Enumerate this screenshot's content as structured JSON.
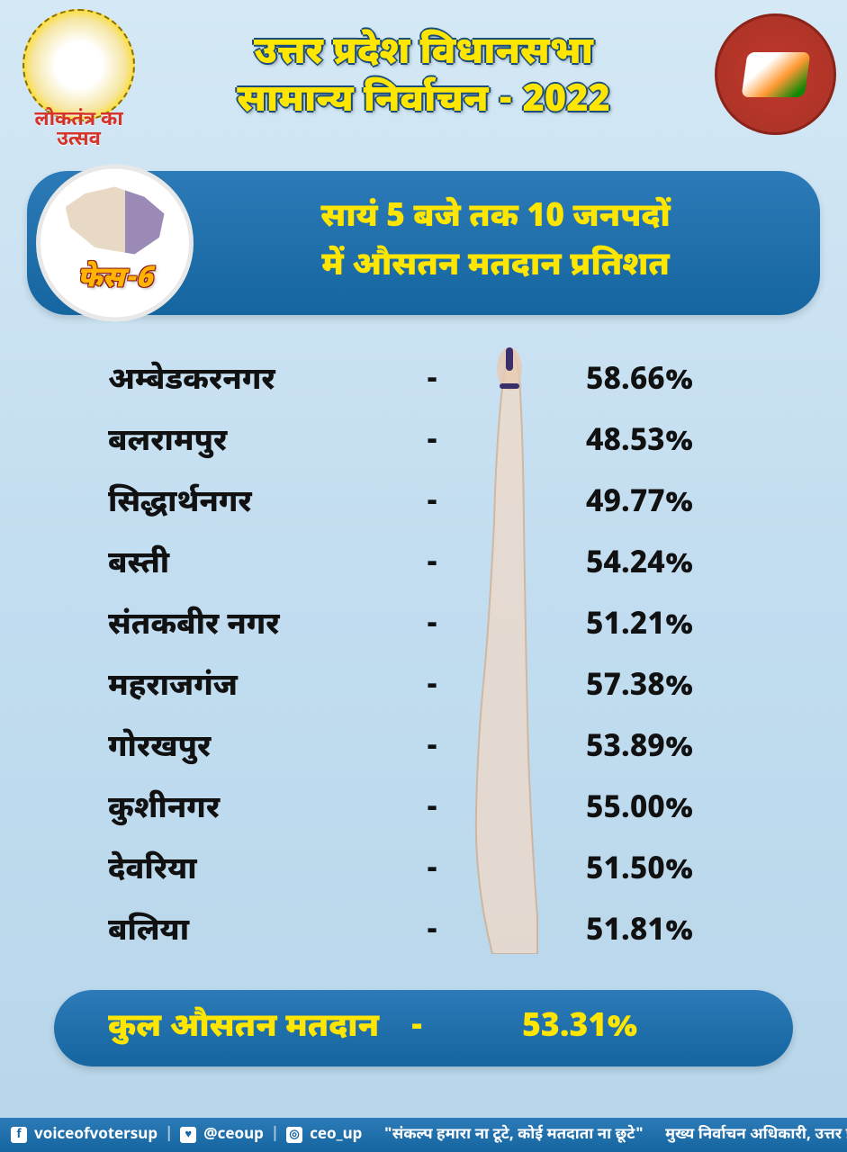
{
  "colors": {
    "bg_top": "#d4e8f5",
    "bg_bottom": "#b8d6ea",
    "banner_top": "#2c7bb8",
    "banner_bottom": "#1565a0",
    "title_yellow": "#ffe600",
    "text_black": "#111111",
    "logo_red": "#a93226",
    "phase_orange": "#ffb300"
  },
  "typography": {
    "title_size_pt": 42,
    "banner_size_pt": 36,
    "row_size_pt": 34,
    "footer_size_pt": 17,
    "weight": 900
  },
  "header": {
    "title_line1": "उत्तर प्रदेश विधानसभा",
    "title_line2": "सामान्य निर्वाचन - 2022",
    "festival_line1": "लोकतंत्र का",
    "festival_line2": "उत्सव"
  },
  "phase": {
    "label": "फेस-6",
    "banner_line1": "सायं 5 बजे तक 10 जनपदों",
    "banner_line2": "में औसतन मतदान प्रतिशत"
  },
  "districts": [
    {
      "name": "अम्बेडकरनगर",
      "pct": "58.66%"
    },
    {
      "name": "बलरामपुर",
      "pct": "48.53%"
    },
    {
      "name": "सिद्धार्थनगर",
      "pct": "49.77%"
    },
    {
      "name": "बस्ती",
      "pct": "54.24%"
    },
    {
      "name": "संतकबीर नगर",
      "pct": "51.21%"
    },
    {
      "name": "महराजगंज",
      "pct": "57.38%"
    },
    {
      "name": "गोरखपुर",
      "pct": "53.89%"
    },
    {
      "name": "कुशीनगर",
      "pct": "55.00%"
    },
    {
      "name": "देवरिया",
      "pct": "51.50%"
    },
    {
      "name": "बलिया",
      "pct": "51.81%"
    }
  ],
  "summary": {
    "label": "कुल औसतन मतदान",
    "dash": "-",
    "value": "53.31%"
  },
  "footer": {
    "fb": "voiceofvotersup",
    "tw": "@ceoup",
    "ig": "ceo_up",
    "quote": "\"संकल्प हमारा ना टूटे, कोई मतदाता ना छूटे\"",
    "officer": "मुख्य निर्वाचन अधिकारी, उत्तर प्रदेश"
  }
}
